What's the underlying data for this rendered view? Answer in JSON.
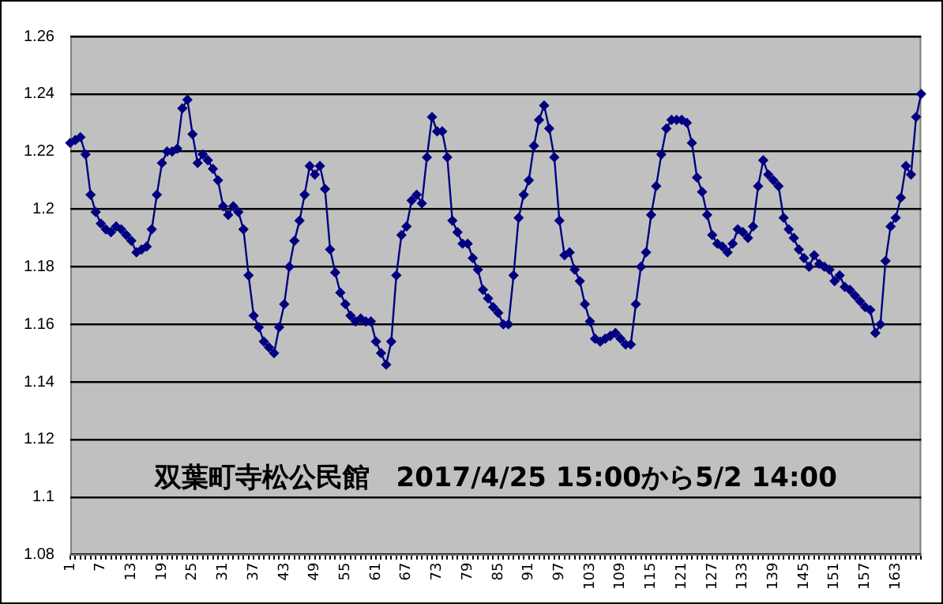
{
  "chart_data": {
    "type": "line",
    "categories": [
      "1",
      null,
      null,
      null,
      null,
      null,
      "7",
      null,
      null,
      null,
      null,
      null,
      "13",
      null,
      null,
      null,
      null,
      null,
      "19",
      null,
      null,
      null,
      null,
      null,
      "25",
      null,
      null,
      null,
      null,
      null,
      "31",
      null,
      null,
      null,
      null,
      null,
      "37",
      null,
      null,
      null,
      null,
      null,
      "43",
      null,
      null,
      null,
      null,
      null,
      "49",
      null,
      null,
      null,
      null,
      null,
      "55",
      null,
      null,
      null,
      null,
      null,
      "61",
      null,
      null,
      null,
      null,
      null,
      "67",
      null,
      null,
      null,
      null,
      null,
      "73",
      null,
      null,
      null,
      null,
      null,
      "79",
      null,
      null,
      null,
      null,
      null,
      "85",
      null,
      null,
      null,
      null,
      null,
      "91",
      null,
      null,
      null,
      null,
      null,
      "97",
      null,
      null,
      null,
      null,
      null,
      "103",
      null,
      null,
      null,
      null,
      null,
      "109",
      null,
      null,
      null,
      null,
      null,
      "115",
      null,
      null,
      null,
      null,
      null,
      "121",
      null,
      null,
      null,
      null,
      null,
      "127",
      null,
      null,
      null,
      null,
      null,
      "133",
      null,
      null,
      null,
      null,
      null,
      "139",
      null,
      null,
      null,
      null,
      null,
      "145",
      null,
      null,
      null,
      null,
      null,
      "151",
      null,
      null,
      null,
      null,
      null,
      "157",
      null,
      null,
      null,
      null,
      null,
      "163",
      null,
      null,
      null,
      null,
      null
    ],
    "values": [
      1.223,
      1.224,
      1.225,
      1.219,
      1.205,
      1.199,
      1.195,
      1.193,
      1.192,
      1.194,
      1.193,
      1.191,
      1.189,
      1.185,
      1.186,
      1.187,
      1.193,
      1.205,
      1.216,
      1.22,
      1.22,
      1.221,
      1.235,
      1.238,
      1.226,
      1.216,
      1.219,
      1.217,
      1.214,
      1.21,
      1.201,
      1.198,
      1.201,
      1.199,
      1.193,
      1.177,
      1.163,
      1.159,
      1.154,
      1.152,
      1.15,
      1.159,
      1.167,
      1.18,
      1.189,
      1.196,
      1.205,
      1.215,
      1.212,
      1.215,
      1.207,
      1.186,
      1.178,
      1.171,
      1.167,
      1.163,
      1.161,
      1.162,
      1.161,
      1.161,
      1.154,
      1.15,
      1.146,
      1.154,
      1.177,
      1.191,
      1.194,
      1.203,
      1.205,
      1.202,
      1.218,
      1.232,
      1.227,
      1.227,
      1.218,
      1.196,
      1.192,
      1.188,
      1.188,
      1.183,
      1.179,
      1.172,
      1.169,
      1.166,
      1.164,
      1.16,
      1.16,
      1.177,
      1.197,
      1.205,
      1.21,
      1.222,
      1.231,
      1.236,
      1.228,
      1.218,
      1.196,
      1.184,
      1.185,
      1.179,
      1.175,
      1.167,
      1.161,
      1.155,
      1.154,
      1.155,
      1.156,
      1.157,
      1.155,
      1.153,
      1.153,
      1.167,
      1.18,
      1.185,
      1.198,
      1.208,
      1.219,
      1.228,
      1.231,
      1.231,
      1.231,
      1.23,
      1.223,
      1.211,
      1.206,
      1.198,
      1.191,
      1.188,
      1.187,
      1.185,
      1.188,
      1.193,
      1.192,
      1.19,
      1.194,
      1.208,
      1.217,
      1.212,
      1.21,
      1.208,
      1.197,
      1.193,
      1.19,
      1.186,
      1.183,
      1.18,
      1.184,
      1.181,
      1.18,
      1.179,
      1.175,
      1.177,
      1.173,
      1.172,
      1.17,
      1.168,
      1.166,
      1.165,
      1.157,
      1.16,
      1.182,
      1.194,
      1.197,
      1.204,
      1.215,
      1.212,
      1.232,
      1.24
    ],
    "color": "#000080",
    "ylim": [
      1.08,
      1.26
    ],
    "yticks": [
      1.08,
      1.1,
      1.12,
      1.14,
      1.16,
      1.18,
      1.2,
      1.22,
      1.24,
      1.26
    ],
    "grid": "y",
    "marker": "diamond",
    "line_style": "solid",
    "annotations": [
      "双葉町寺松公民館　2017/4/25 15:00から5/2 14:00"
    ]
  }
}
